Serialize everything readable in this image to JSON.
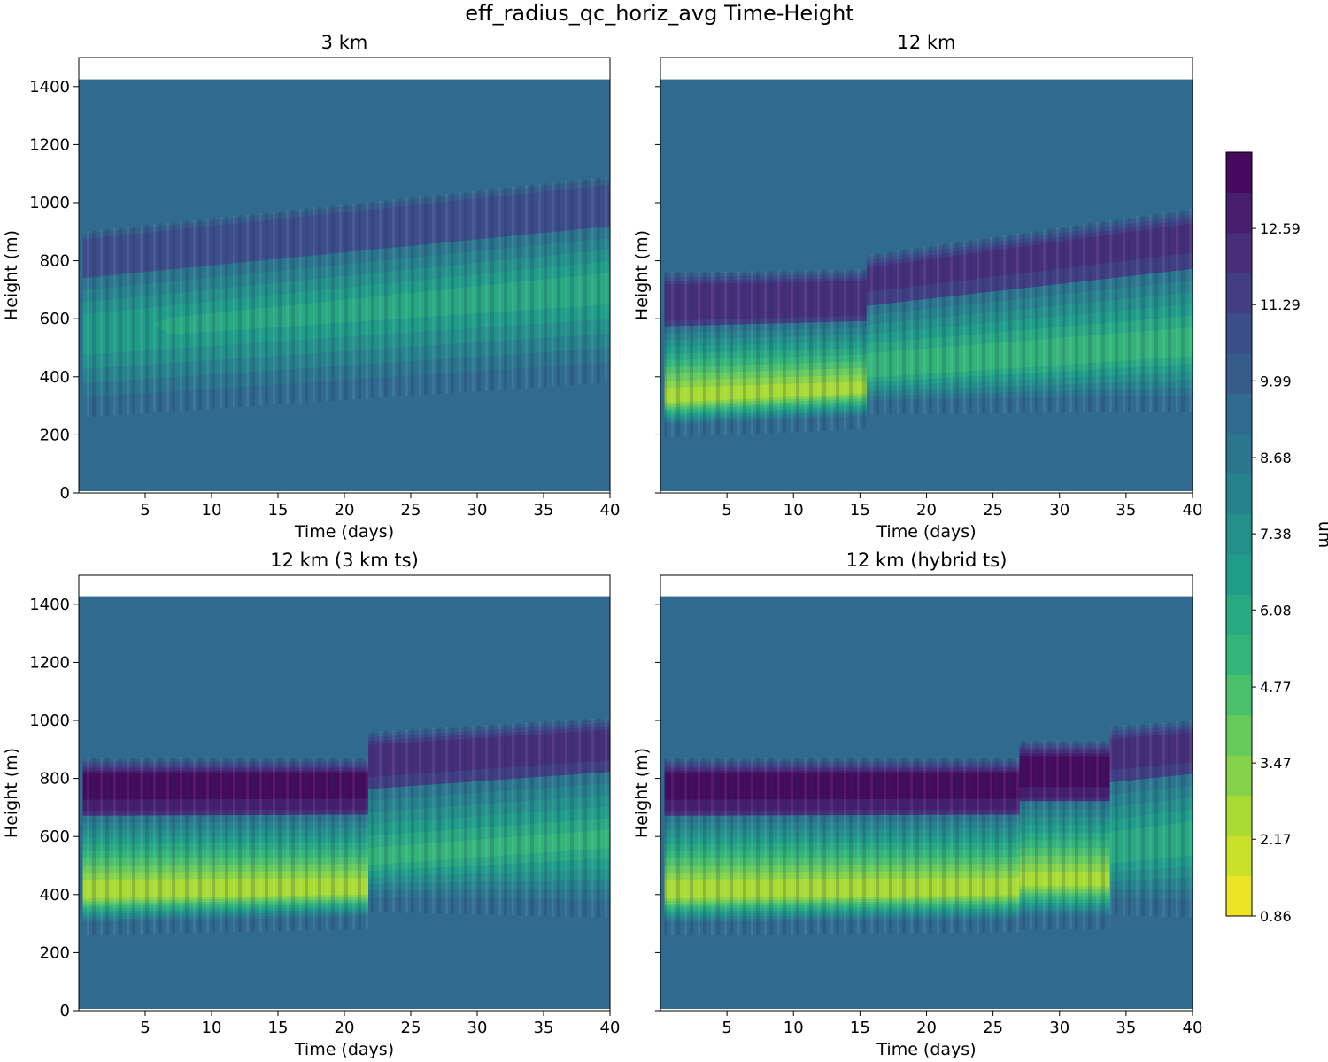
{
  "figure": {
    "title": "eff_radius_qc_horiz_avg Time-Height"
  },
  "chart_data": {
    "type": "heatmap",
    "title": "eff_radius_qc_horiz_avg Time-Height",
    "xlabel": "Time (days)",
    "ylabel": "Height (m)",
    "xlim": [
      0,
      40
    ],
    "ylim": [
      0,
      1500
    ],
    "xticks": [
      5,
      10,
      15,
      20,
      25,
      30,
      35,
      40
    ],
    "yticks": [
      0,
      200,
      400,
      600,
      800,
      1000,
      1200,
      1400
    ],
    "data_top_m": 1425,
    "background_value_um": 9.5,
    "colorbar": {
      "label": "um",
      "colormap": "viridis_r",
      "vmin": 0.86,
      "vmax": 13.89,
      "levels": 19,
      "tick_labels": [
        "0.86",
        "2.17",
        "3.47",
        "4.77",
        "6.08",
        "7.38",
        "8.68",
        "9.99",
        "11.29",
        "12.59"
      ]
    },
    "panels": [
      {
        "title": "3 km",
        "cloud_regimes": [
          {
            "t_start": 0.3,
            "t_end": 40,
            "base_m_start": 300,
            "base_m_end": 420,
            "peak_m_start": 560,
            "peak_m_end": 720,
            "top_m_start": 900,
            "top_m_end": 1090,
            "min_um_start": 6.4,
            "min_um_end": 6.0,
            "max_um": 11.0
          }
        ]
      },
      {
        "title": "12 km",
        "cloud_regimes": [
          {
            "t_start": 0.3,
            "t_end": 15.5,
            "base_m_start": 230,
            "base_m_end": 260,
            "peak_m_start": 330,
            "peak_m_end": 360,
            "top_m_start": 760,
            "top_m_end": 770,
            "min_um_start": 2.6,
            "min_um_end": 2.8,
            "max_um": 12.4
          },
          {
            "t_start": 15.5,
            "t_end": 40,
            "base_m_start": 310,
            "base_m_end": 320,
            "peak_m_start": 430,
            "peak_m_end": 520,
            "top_m_start": 820,
            "top_m_end": 980,
            "min_um_start": 5.0,
            "min_um_end": 5.2,
            "max_um": 12.0
          }
        ]
      },
      {
        "title": "12 km (3 km ts)",
        "cloud_regimes": [
          {
            "t_start": 0.3,
            "t_end": 21.8,
            "base_m_start": 300,
            "base_m_end": 320,
            "peak_m_start": 410,
            "peak_m_end": 420,
            "top_m_start": 870,
            "top_m_end": 870,
            "min_um_start": 2.4,
            "min_um_end": 2.5,
            "max_um": 13.3
          },
          {
            "t_start": 21.8,
            "t_end": 40,
            "base_m_start": 380,
            "base_m_end": 360,
            "peak_m_start": 530,
            "peak_m_end": 600,
            "top_m_start": 960,
            "top_m_end": 1010,
            "min_um_start": 5.5,
            "min_um_end": 5.6,
            "max_um": 12.2
          }
        ]
      },
      {
        "title": "12 km (hybrid ts)",
        "cloud_regimes": [
          {
            "t_start": 0.3,
            "t_end": 27.0,
            "base_m_start": 300,
            "base_m_end": 310,
            "peak_m_start": 410,
            "peak_m_end": 420,
            "top_m_start": 870,
            "top_m_end": 870,
            "min_um_start": 2.4,
            "min_um_end": 2.5,
            "max_um": 13.3
          },
          {
            "t_start": 27.0,
            "t_end": 33.8,
            "base_m_start": 320,
            "base_m_end": 320,
            "peak_m_start": 450,
            "peak_m_end": 450,
            "top_m_start": 930,
            "top_m_end": 930,
            "min_um_start": 2.8,
            "min_um_end": 2.8,
            "max_um": 13.5
          },
          {
            "t_start": 33.8,
            "t_end": 40,
            "base_m_start": 370,
            "base_m_end": 360,
            "peak_m_start": 560,
            "peak_m_end": 600,
            "top_m_start": 980,
            "top_m_end": 1000,
            "min_um_start": 5.8,
            "min_um_end": 5.8,
            "max_um": 12.2
          }
        ]
      }
    ]
  }
}
